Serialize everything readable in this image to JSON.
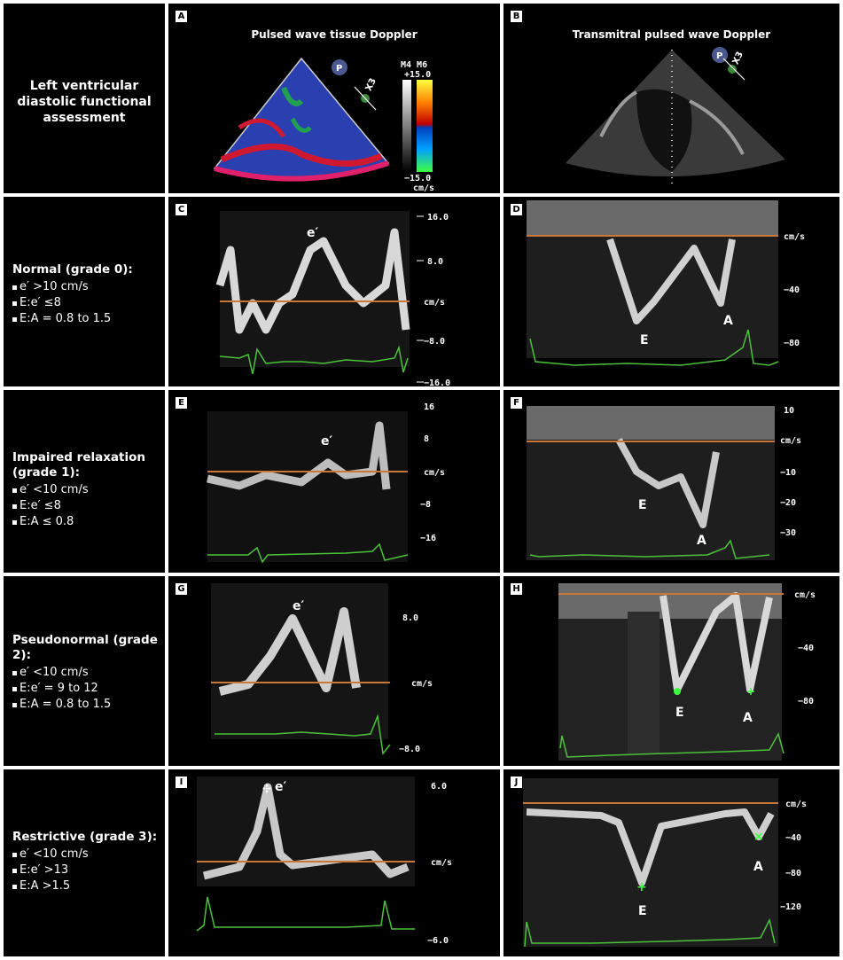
{
  "title_cell": {
    "text": "Left ventricular diastolic functional assessment"
  },
  "panels": {
    "A": {
      "letter": "A",
      "title": "Pulsed wave tissue Doppler",
      "scale_top": "M4 M6",
      "scale_max": "+15.0",
      "scale_min": "−15.0",
      "scale_unit": "cm/s",
      "probe": "P",
      "zoom": "X3"
    },
    "B": {
      "letter": "B",
      "title": "Transmitral pulsed wave Doppler",
      "probe": "P",
      "zoom": "X3"
    },
    "C": {
      "letter": "C",
      "ticks": [
        "16.0",
        "8.0",
        "cm/s",
        "−8.0",
        "−16.0"
      ],
      "wave": "e′"
    },
    "D": {
      "letter": "D",
      "ticks": [
        "cm/s",
        "−40",
        "−80"
      ],
      "waves": [
        "E",
        "A"
      ]
    },
    "E": {
      "letter": "E",
      "ticks": [
        "16",
        "8",
        "cm/s",
        "−8",
        "−16"
      ],
      "wave": "e′"
    },
    "F": {
      "letter": "F",
      "ticks": [
        "10",
        "cm/s",
        "−10",
        "−20",
        "−30"
      ],
      "waves": [
        "E",
        "A"
      ]
    },
    "G": {
      "letter": "G",
      "ticks": [
        "8.0",
        "cm/s",
        "−8.0"
      ],
      "wave": "e′"
    },
    "H": {
      "letter": "H",
      "ticks": [
        "cm/s",
        "−40",
        "−80"
      ],
      "waves": [
        "E",
        "A"
      ]
    },
    "I": {
      "letter": "I",
      "ticks": [
        "6.0",
        "cm/s",
        "−6.0"
      ],
      "wave": "e′"
    },
    "J": {
      "letter": "J",
      "ticks": [
        "cm/s",
        "−40",
        "−80",
        "−120"
      ],
      "waves": [
        "E",
        "A"
      ]
    }
  },
  "rows": [
    {
      "heading": "Normal (grade 0):",
      "criteria": [
        "e′ >10 cm/s",
        "E:e′ ≤8",
        "E:A = 0.8 to 1.5"
      ]
    },
    {
      "heading": "Impaired relaxation (grade 1):",
      "criteria": [
        "e′ <10 cm/s",
        "E:e′ ≤8",
        "E:A ≤ 0.8"
      ]
    },
    {
      "heading": "Pseudonormal (grade 2):",
      "criteria": [
        "e′ <10 cm/s",
        "E:e′ = 9 to 12",
        "E:A = 0.8 to 1.5"
      ]
    },
    {
      "heading": "Restrictive (grade 3):",
      "criteria": [
        "e′ <10 cm/s",
        "E:e′ >13",
        "E:A >1.5"
      ]
    }
  ],
  "colors": {
    "baseline": "#c8783a",
    "ecg": "#4cc23a",
    "marker": "#3cff3c"
  }
}
